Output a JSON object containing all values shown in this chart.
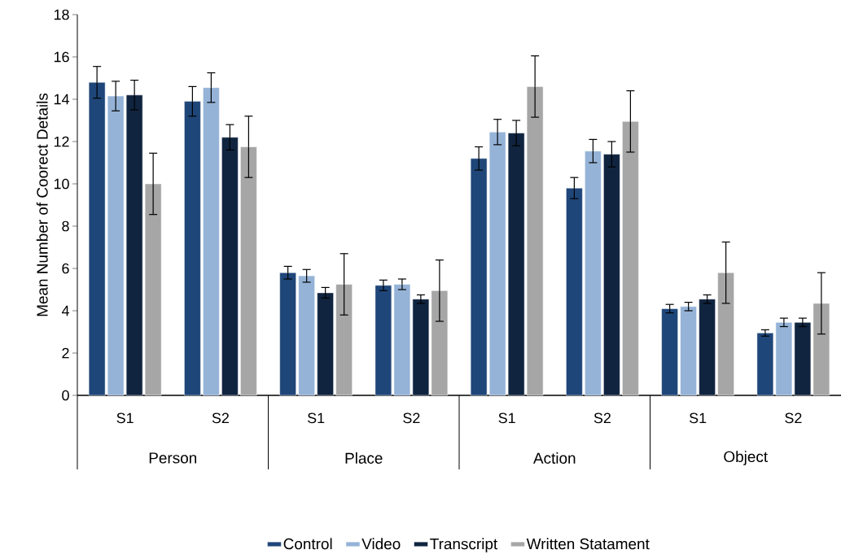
{
  "chart_data": {
    "type": "bar",
    "ylabel": "Mean Number of Coorect Details",
    "categories": [
      "S1",
      "S2",
      "S1",
      "S2",
      "S1",
      "S2",
      "S1",
      "S2"
    ],
    "annotations": [
      "Person",
      "Place",
      "Action",
      "Object"
    ],
    "series": [
      {
        "name": "Control",
        "color": "#1f4679",
        "values": [
          14.8,
          13.9,
          5.8,
          5.2,
          11.2,
          9.8,
          4.1,
          2.95
        ],
        "errors": [
          0.75,
          0.7,
          0.3,
          0.25,
          0.55,
          0.5,
          0.2,
          0.15
        ]
      },
      {
        "name": "Video",
        "color": "#95b3d7",
        "values": [
          14.15,
          14.55,
          5.65,
          5.25,
          12.45,
          11.55,
          4.2,
          3.45
        ],
        "errors": [
          0.7,
          0.7,
          0.3,
          0.25,
          0.6,
          0.55,
          0.2,
          0.2
        ]
      },
      {
        "name": "Transcript",
        "color": "#10243f",
        "values": [
          14.2,
          12.2,
          4.85,
          4.55,
          12.4,
          11.4,
          4.55,
          3.45
        ],
        "errors": [
          0.7,
          0.6,
          0.25,
          0.2,
          0.6,
          0.6,
          0.2,
          0.2
        ]
      },
      {
        "name": "Written Statament",
        "color": "#a6a6a6",
        "values": [
          10.0,
          11.75,
          5.25,
          4.95,
          14.6,
          12.95,
          5.8,
          4.35
        ],
        "errors": [
          1.45,
          1.45,
          1.45,
          1.45,
          1.45,
          1.45,
          1.45,
          1.45
        ]
      }
    ],
    "ylim": [
      0,
      18
    ],
    "yticks": [
      0,
      2,
      4,
      6,
      8,
      10,
      12,
      14,
      16,
      18
    ],
    "legend": "bottom"
  }
}
